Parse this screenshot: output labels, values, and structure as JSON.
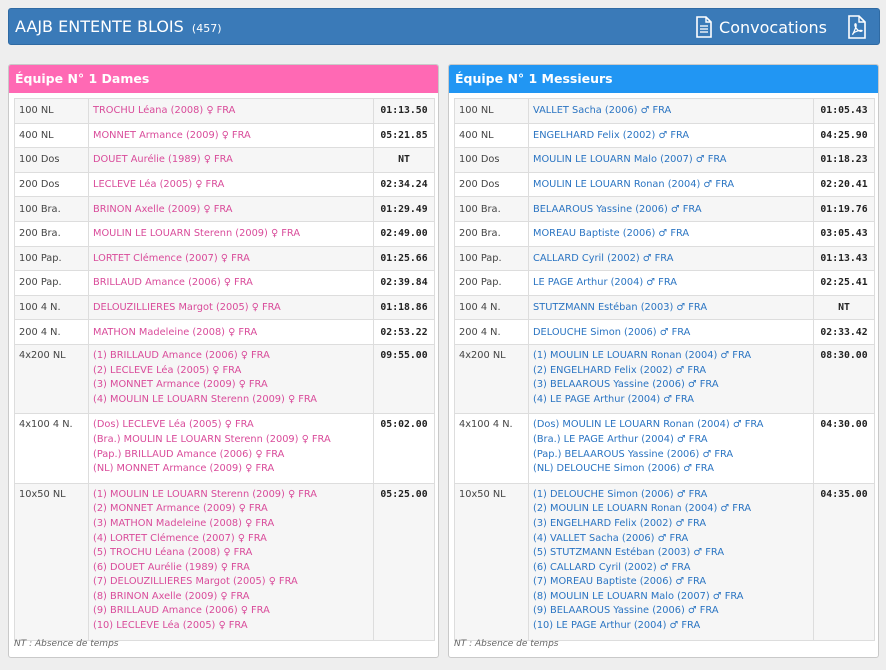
{
  "header": {
    "club_name": "AAJB ENTENTE BLOIS",
    "club_count": "(457)",
    "convocations_label": "Convocations",
    "icons": [
      "document-icon",
      "pdf-icon"
    ],
    "bar_color": "#3a7ab8"
  },
  "teams": [
    {
      "title": "Équipe N° 1 Dames",
      "color": "#ff69b4",
      "rows": [
        {
          "event": "100 NL",
          "swimmers": [
            "TROCHU Léana (2008) ♀ FRA"
          ],
          "time": "01:13.50"
        },
        {
          "event": "400 NL",
          "swimmers": [
            "MONNET Armance (2009) ♀ FRA"
          ],
          "time": "05:21.85"
        },
        {
          "event": "100 Dos",
          "swimmers": [
            "DOUET Aurélie (1989) ♀ FRA"
          ],
          "time": "NT"
        },
        {
          "event": "200 Dos",
          "swimmers": [
            "LECLEVE Léa (2005) ♀ FRA"
          ],
          "time": "02:34.24"
        },
        {
          "event": "100 Bra.",
          "swimmers": [
            "BRINON Axelle (2009) ♀ FRA"
          ],
          "time": "01:29.49"
        },
        {
          "event": "200 Bra.",
          "swimmers": [
            "MOULIN LE LOUARN Sterenn (2009) ♀ FRA"
          ],
          "time": "02:49.00"
        },
        {
          "event": "100 Pap.",
          "swimmers": [
            "LORTET Clémence (2007) ♀ FRA"
          ],
          "time": "01:25.66"
        },
        {
          "event": "200 Pap.",
          "swimmers": [
            "BRILLAUD Amance (2006) ♀ FRA"
          ],
          "time": "02:39.84"
        },
        {
          "event": "100 4 N.",
          "swimmers": [
            "DELOUZILLIERES Margot (2005) ♀ FRA"
          ],
          "time": "01:18.86"
        },
        {
          "event": "200 4 N.",
          "swimmers": [
            "MATHON Madeleine (2008) ♀ FRA"
          ],
          "time": "02:53.22"
        },
        {
          "event": "4x200 NL",
          "swimmers": [
            "(1) BRILLAUD Amance (2006) ♀ FRA",
            "(2) LECLEVE Léa (2005) ♀ FRA",
            "(3) MONNET Armance (2009) ♀ FRA",
            "(4) MOULIN LE LOUARN Sterenn (2009) ♀ FRA"
          ],
          "time": "09:55.00"
        },
        {
          "event": "4x100 4 N.",
          "swimmers": [
            "(Dos) LECLEVE Léa (2005) ♀ FRA",
            "(Bra.) MOULIN LE LOUARN Sterenn (2009) ♀ FRA",
            "(Pap.) BRILLAUD Amance (2006) ♀ FRA",
            "(NL) MONNET Armance (2009) ♀ FRA"
          ],
          "time": "05:02.00"
        },
        {
          "event": "10x50 NL",
          "swimmers": [
            "(1) MOULIN LE LOUARN Sterenn (2009) ♀ FRA",
            "(2) MONNET Armance (2009) ♀ FRA",
            "(3) MATHON Madeleine (2008) ♀ FRA",
            "(4) LORTET Clémence (2007) ♀ FRA",
            "(5) TROCHU Léana (2008) ♀ FRA",
            "(6) DOUET Aurélie (1989) ♀ FRA",
            "(7) DELOUZILLIERES Margot (2005) ♀ FRA",
            "(8) BRINON Axelle (2009) ♀ FRA",
            "(9) BRILLAUD Amance (2006) ♀ FRA",
            "(10) LECLEVE Léa (2005) ♀ FRA"
          ],
          "time": "05:25.00"
        }
      ],
      "note": "NT : Absence de temps"
    },
    {
      "title": "Équipe N° 1 Messieurs",
      "color": "#2196f3",
      "rows": [
        {
          "event": "100 NL",
          "swimmers": [
            "VALLET Sacha (2006) ♂ FRA"
          ],
          "time": "01:05.43"
        },
        {
          "event": "400 NL",
          "swimmers": [
            "ENGELHARD Felix (2002) ♂ FRA"
          ],
          "time": "04:25.90"
        },
        {
          "event": "100 Dos",
          "swimmers": [
            "MOULIN LE LOUARN Malo (2007) ♂ FRA"
          ],
          "time": "01:18.23"
        },
        {
          "event": "200 Dos",
          "swimmers": [
            "MOULIN LE LOUARN Ronan (2004) ♂ FRA"
          ],
          "time": "02:20.41"
        },
        {
          "event": "100 Bra.",
          "swimmers": [
            "BELAAROUS Yassine (2006) ♂ FRA"
          ],
          "time": "01:19.76"
        },
        {
          "event": "200 Bra.",
          "swimmers": [
            "MOREAU Baptiste (2006) ♂ FRA"
          ],
          "time": "03:05.43"
        },
        {
          "event": "100 Pap.",
          "swimmers": [
            "CALLARD Cyril (2002) ♂ FRA"
          ],
          "time": "01:13.43"
        },
        {
          "event": "200 Pap.",
          "swimmers": [
            "LE PAGE Arthur (2004) ♂ FRA"
          ],
          "time": "02:25.41"
        },
        {
          "event": "100 4 N.",
          "swimmers": [
            "STUTZMANN Estéban (2003) ♂ FRA"
          ],
          "time": "NT"
        },
        {
          "event": "200 4 N.",
          "swimmers": [
            "DELOUCHE Simon (2006) ♂ FRA"
          ],
          "time": "02:33.42"
        },
        {
          "event": "4x200 NL",
          "swimmers": [
            "(1) MOULIN LE LOUARN Ronan (2004) ♂ FRA",
            "(2) ENGELHARD Felix (2002) ♂ FRA",
            "(3) BELAAROUS Yassine (2006) ♂ FRA",
            "(4) LE PAGE Arthur (2004) ♂ FRA"
          ],
          "time": "08:30.00"
        },
        {
          "event": "4x100 4 N.",
          "swimmers": [
            "(Dos) MOULIN LE LOUARN Ronan (2004) ♂ FRA",
            "(Bra.) LE PAGE Arthur (2004) ♂ FRA",
            "(Pap.) BELAAROUS Yassine (2006) ♂ FRA",
            "(NL) DELOUCHE Simon (2006) ♂ FRA"
          ],
          "time": "04:30.00"
        },
        {
          "event": "10x50 NL",
          "swimmers": [
            "(1) DELOUCHE Simon (2006) ♂ FRA",
            "(2) MOULIN LE LOUARN Ronan (2004) ♂ FRA",
            "(3) ENGELHARD Felix (2002) ♂ FRA",
            "(4) VALLET Sacha (2006) ♂ FRA",
            "(5) STUTZMANN Estéban (2003) ♂ FRA",
            "(6) CALLARD Cyril (2002) ♂ FRA",
            "(7) MOREAU Baptiste (2006) ♂ FRA",
            "(8) MOULIN LE LOUARN Malo (2007) ♂ FRA",
            "(9) BELAAROUS Yassine (2006) ♂ FRA",
            "(10) LE PAGE Arthur (2004) ♂ FRA"
          ],
          "time": "04:35.00"
        }
      ],
      "note": "NT : Absence de temps"
    }
  ]
}
